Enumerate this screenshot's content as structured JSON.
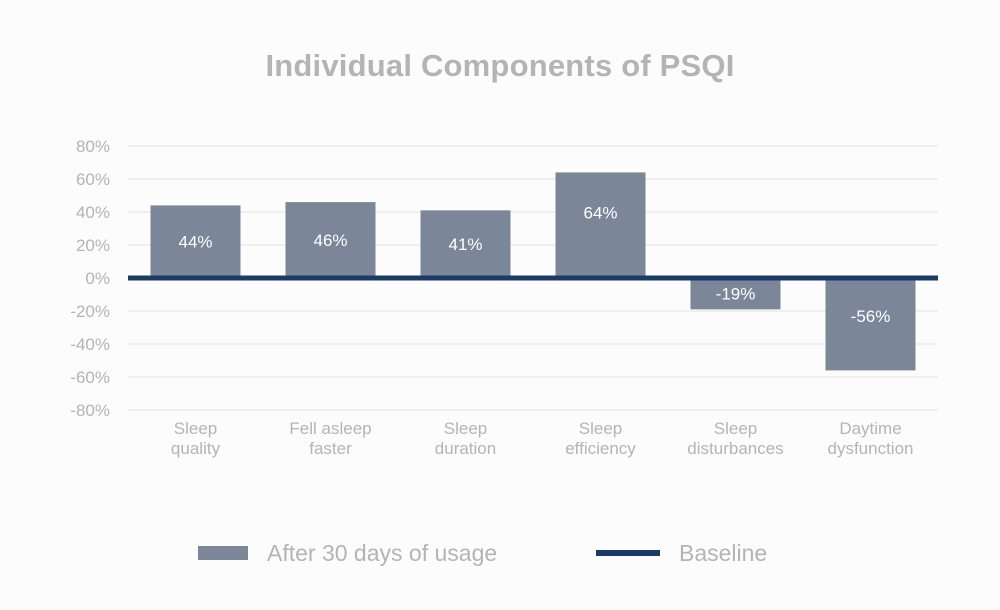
{
  "chart_data": {
    "type": "bar",
    "title": "Individual Components of PSQI",
    "categories": [
      [
        "Sleep",
        "quality"
      ],
      [
        "Fell asleep",
        "faster"
      ],
      [
        "Sleep",
        "duration"
      ],
      [
        "Sleep",
        "efficiency"
      ],
      [
        "Sleep",
        "disturbances"
      ],
      [
        "Daytime",
        "dysfunction"
      ]
    ],
    "series": [
      {
        "name": "After 30 days of usage",
        "values": [
          44,
          46,
          41,
          64,
          -19,
          -56
        ],
        "value_labels": [
          "44%",
          "46%",
          "41%",
          "64%",
          "-19%",
          "-56%"
        ],
        "color": "#7b8799"
      },
      {
        "name": "Baseline",
        "type": "line",
        "value": 0,
        "color": "#1b3a66"
      }
    ],
    "ylim": [
      -80,
      80
    ],
    "yticks": [
      80,
      60,
      40,
      20,
      0,
      -20,
      -40,
      -60,
      -80
    ],
    "ytick_labels": [
      "80%",
      "60%",
      "40%",
      "20%",
      "0%",
      "-20%",
      "-40%",
      "-60%",
      "-80%"
    ],
    "xlabel": "",
    "ylabel": "",
    "grid": true,
    "legend": "bottom",
    "colors": {
      "text": "#b4b4b4",
      "grid": "#e2e2e2",
      "bar_label": "#ffffff"
    }
  }
}
